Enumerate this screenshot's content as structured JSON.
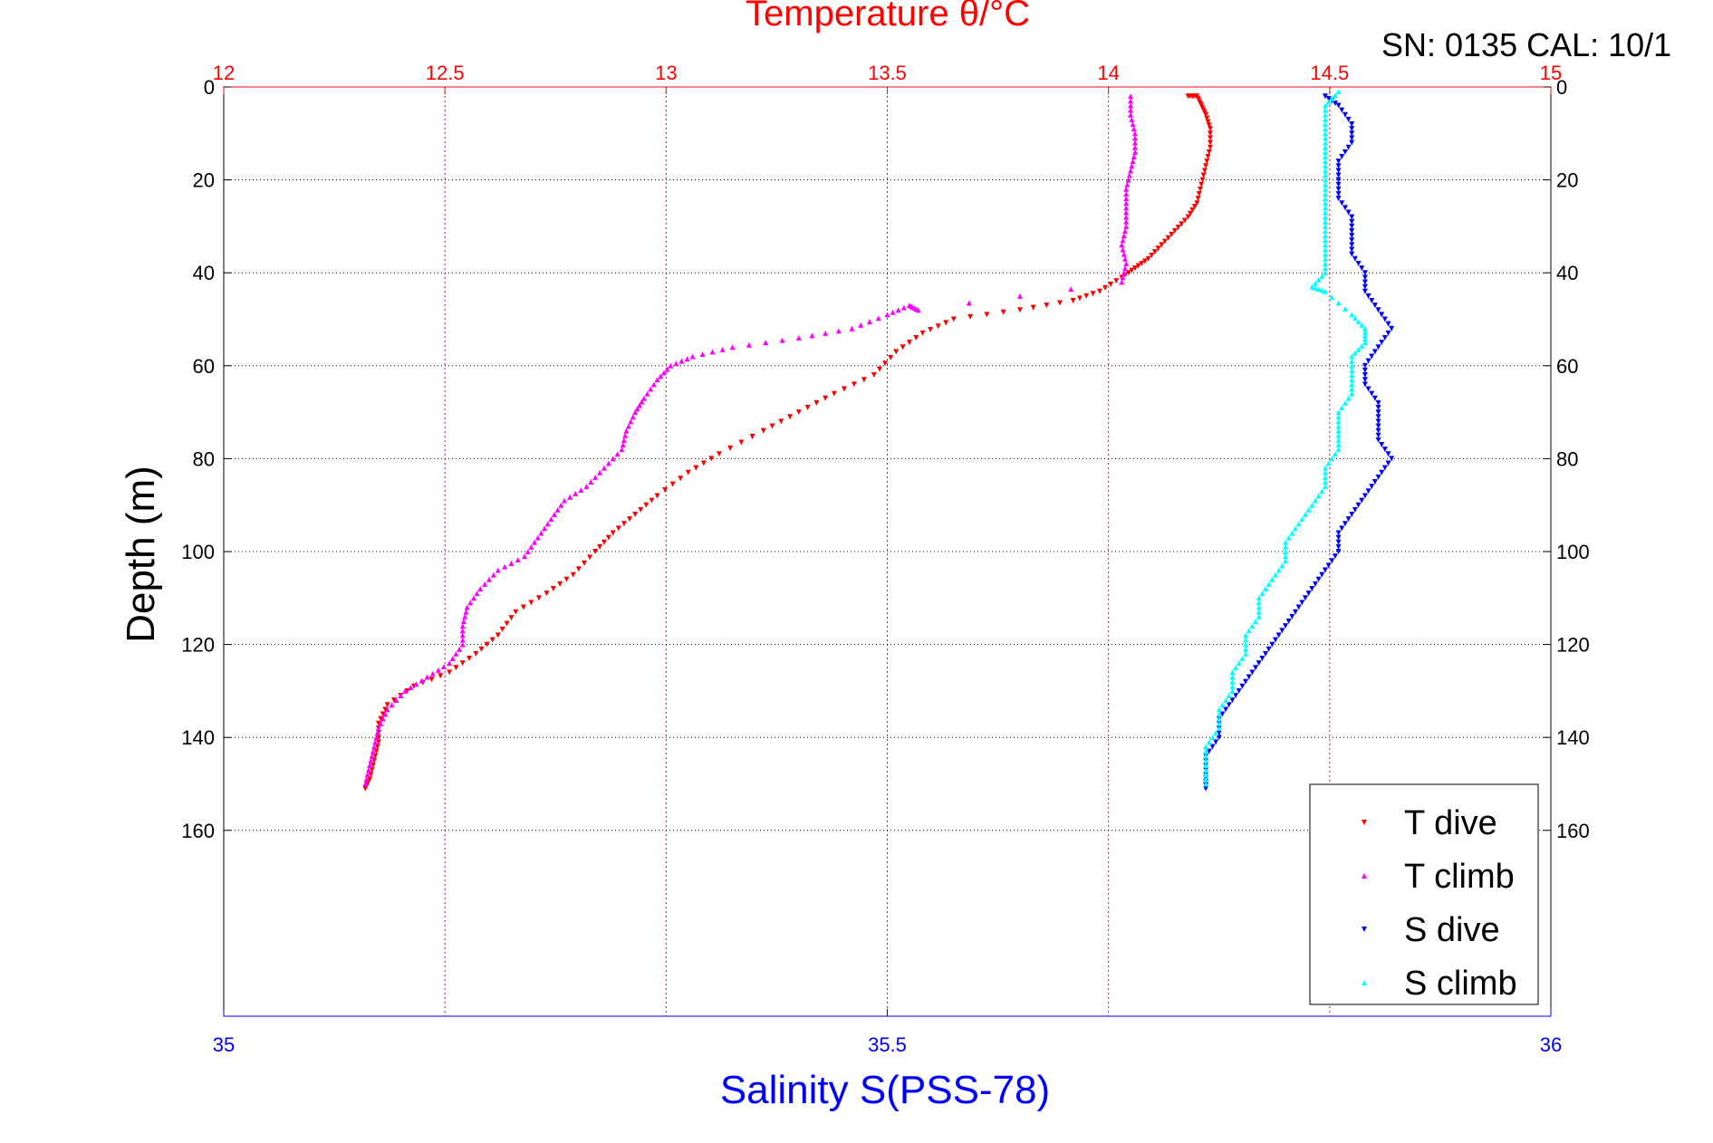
{
  "chart_data": {
    "type": "scatter",
    "title_top": "Temperature θ/°C",
    "xlabel_bottom": "Salinity S(PSS-78)",
    "ylabel": "Depth (m)",
    "serial_label": "SN: 0135  CAL: 10/1",
    "top_axis": {
      "min": 12,
      "max": 15,
      "ticks": [
        "12",
        "12.5",
        "13",
        "13.5",
        "14",
        "14.5",
        "15"
      ],
      "color": "#ff0000"
    },
    "bottom_axis": {
      "min": 35,
      "max": 36,
      "ticks": [
        "35",
        "35.5",
        "36"
      ],
      "color": "#0000ff"
    },
    "y_axis": {
      "min": 0,
      "max": 200,
      "reversed": true,
      "ticks": [
        "0",
        "20",
        "40",
        "60",
        "80",
        "100",
        "120",
        "140",
        "160"
      ]
    },
    "grid": true,
    "legend_position": "bottom-right",
    "series": [
      {
        "name": "T dive",
        "axis": "top",
        "color": "#ff0000",
        "marker": "triangle-down",
        "points": [
          [
            14.18,
            2
          ],
          [
            14.2,
            2
          ],
          [
            14.21,
            4
          ],
          [
            14.22,
            6
          ],
          [
            14.23,
            9
          ],
          [
            14.23,
            13
          ],
          [
            14.22,
            17
          ],
          [
            14.21,
            21
          ],
          [
            14.2,
            25
          ],
          [
            14.18,
            28
          ],
          [
            14.15,
            31
          ],
          [
            14.12,
            34
          ],
          [
            14.09,
            37
          ],
          [
            14.06,
            39
          ],
          [
            14.03,
            41
          ],
          [
            13.98,
            44
          ],
          [
            13.92,
            46
          ],
          [
            13.8,
            48
          ],
          [
            13.65,
            50
          ],
          [
            13.58,
            53
          ],
          [
            13.52,
            57
          ],
          [
            13.47,
            62
          ],
          [
            13.38,
            66
          ],
          [
            13.3,
            70
          ],
          [
            13.22,
            74
          ],
          [
            13.12,
            79
          ],
          [
            13.05,
            83
          ],
          [
            12.98,
            88
          ],
          [
            12.93,
            92
          ],
          [
            12.88,
            96
          ],
          [
            12.84,
            100
          ],
          [
            12.79,
            105
          ],
          [
            12.73,
            109
          ],
          [
            12.66,
            113
          ],
          [
            12.62,
            118
          ],
          [
            12.57,
            122
          ],
          [
            12.51,
            126
          ],
          [
            12.43,
            129
          ],
          [
            12.37,
            133
          ],
          [
            12.35,
            137
          ],
          [
            12.35,
            141
          ],
          [
            12.34,
            145
          ],
          [
            12.33,
            149
          ],
          [
            12.32,
            151
          ]
        ]
      },
      {
        "name": "T climb",
        "axis": "top",
        "color": "#ff00ff",
        "marker": "triangle-up",
        "points": [
          [
            12.32,
            150
          ],
          [
            12.33,
            146
          ],
          [
            12.34,
            142
          ],
          [
            12.35,
            138
          ],
          [
            12.37,
            134
          ],
          [
            12.41,
            130
          ],
          [
            12.46,
            127
          ],
          [
            12.51,
            124
          ],
          [
            12.54,
            120
          ],
          [
            12.54,
            116
          ],
          [
            12.55,
            112
          ],
          [
            12.58,
            108
          ],
          [
            12.62,
            104
          ],
          [
            12.68,
            101
          ],
          [
            12.71,
            97
          ],
          [
            12.74,
            93
          ],
          [
            12.77,
            89
          ],
          [
            12.82,
            86
          ],
          [
            12.86,
            82
          ],
          [
            12.9,
            78
          ],
          [
            12.91,
            74
          ],
          [
            12.93,
            70
          ],
          [
            12.95,
            67
          ],
          [
            12.98,
            63
          ],
          [
            13.01,
            60
          ],
          [
            13.06,
            58
          ],
          [
            13.15,
            56
          ],
          [
            13.3,
            54
          ],
          [
            13.42,
            52
          ],
          [
            13.5,
            49
          ],
          [
            13.55,
            47
          ],
          [
            13.57,
            48
          ],
          [
            14.03,
            42
          ],
          [
            14.04,
            38
          ],
          [
            14.03,
            34
          ],
          [
            14.04,
            30
          ],
          [
            14.04,
            26
          ],
          [
            14.04,
            22
          ],
          [
            14.05,
            18
          ],
          [
            14.06,
            14
          ],
          [
            14.06,
            10
          ],
          [
            14.05,
            6
          ],
          [
            14.05,
            2
          ]
        ]
      },
      {
        "name": "S dive",
        "axis": "bottom",
        "color": "#0000ff",
        "marker": "triangle-down",
        "points": [
          [
            35.83,
            2
          ],
          [
            35.84,
            4
          ],
          [
            35.85,
            8
          ],
          [
            35.85,
            12
          ],
          [
            35.84,
            16
          ],
          [
            35.84,
            20
          ],
          [
            35.84,
            24
          ],
          [
            35.85,
            28
          ],
          [
            35.85,
            32
          ],
          [
            35.85,
            36
          ],
          [
            35.86,
            40
          ],
          [
            35.86,
            44
          ],
          [
            35.87,
            48
          ],
          [
            35.88,
            52
          ],
          [
            35.87,
            56
          ],
          [
            35.86,
            60
          ],
          [
            35.86,
            64
          ],
          [
            35.87,
            68
          ],
          [
            35.87,
            72
          ],
          [
            35.87,
            76
          ],
          [
            35.88,
            80
          ],
          [
            35.87,
            84
          ],
          [
            35.86,
            88
          ],
          [
            35.85,
            92
          ],
          [
            35.84,
            96
          ],
          [
            35.84,
            100
          ],
          [
            35.83,
            104
          ],
          [
            35.82,
            108
          ],
          [
            35.81,
            112
          ],
          [
            35.8,
            116
          ],
          [
            35.79,
            120
          ],
          [
            35.78,
            124
          ],
          [
            35.77,
            128
          ],
          [
            35.76,
            132
          ],
          [
            35.75,
            136
          ],
          [
            35.75,
            140
          ],
          [
            35.74,
            144
          ],
          [
            35.74,
            148
          ],
          [
            35.74,
            151
          ]
        ]
      },
      {
        "name": "S climb",
        "axis": "bottom",
        "color": "#00ffff",
        "marker": "triangle-up",
        "points": [
          [
            35.74,
            150
          ],
          [
            35.74,
            146
          ],
          [
            35.74,
            142
          ],
          [
            35.75,
            138
          ],
          [
            35.75,
            134
          ],
          [
            35.76,
            130
          ],
          [
            35.76,
            126
          ],
          [
            35.77,
            122
          ],
          [
            35.77,
            118
          ],
          [
            35.78,
            114
          ],
          [
            35.78,
            110
          ],
          [
            35.79,
            106
          ],
          [
            35.8,
            102
          ],
          [
            35.8,
            98
          ],
          [
            35.81,
            94
          ],
          [
            35.82,
            90
          ],
          [
            35.83,
            86
          ],
          [
            35.83,
            82
          ],
          [
            35.84,
            78
          ],
          [
            35.84,
            74
          ],
          [
            35.84,
            70
          ],
          [
            35.85,
            66
          ],
          [
            35.85,
            62
          ],
          [
            35.85,
            58
          ],
          [
            35.86,
            55
          ],
          [
            35.86,
            52
          ],
          [
            35.85,
            49
          ],
          [
            35.83,
            44
          ],
          [
            35.82,
            43
          ],
          [
            35.83,
            40
          ],
          [
            35.83,
            36
          ],
          [
            35.83,
            32
          ],
          [
            35.83,
            28
          ],
          [
            35.83,
            24
          ],
          [
            35.83,
            20
          ],
          [
            35.83,
            16
          ],
          [
            35.83,
            12
          ],
          [
            35.83,
            8
          ],
          [
            35.83,
            4
          ],
          [
            35.84,
            1
          ]
        ]
      }
    ]
  }
}
